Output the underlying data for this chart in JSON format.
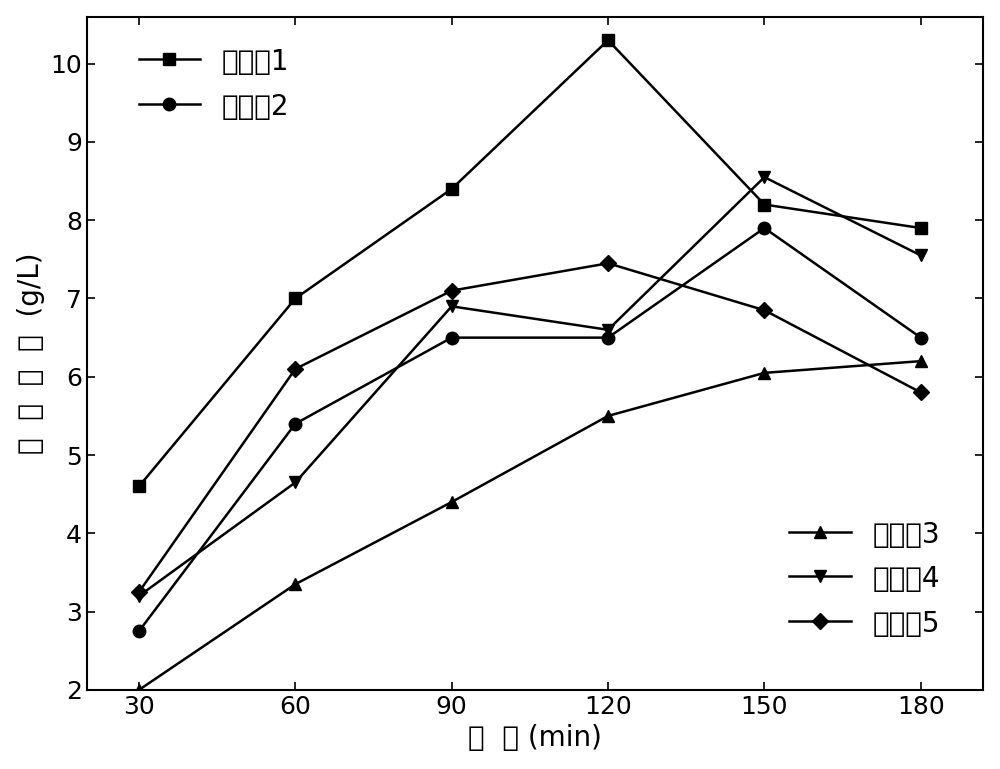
{
  "x": [
    30,
    60,
    90,
    120,
    150,
    180
  ],
  "series": [
    {
      "label": "实施例1",
      "y": [
        4.6,
        7.0,
        8.4,
        10.3,
        8.2,
        7.9
      ],
      "marker": "s",
      "markersize": 9
    },
    {
      "label": "实施例2",
      "y": [
        2.75,
        5.4,
        6.5,
        6.5,
        7.9,
        6.5
      ],
      "marker": "o",
      "markersize": 9
    },
    {
      "label": "实施例3",
      "y": [
        2.0,
        3.35,
        4.4,
        5.5,
        6.05,
        6.2
      ],
      "marker": "^",
      "markersize": 9
    },
    {
      "label": "实施例4",
      "y": [
        3.2,
        4.65,
        6.9,
        6.6,
        8.55,
        7.55
      ],
      "marker": "v",
      "markersize": 9
    },
    {
      "label": "实施例5",
      "y": [
        3.25,
        6.1,
        7.1,
        7.45,
        6.85,
        5.8
      ],
      "marker": "D",
      "markersize": 8
    }
  ],
  "xlabel": "时  间 (min)",
  "ylabel": "氯  化  效  率  (g/L)",
  "xlim": [
    20,
    192
  ],
  "ylim": [
    2,
    10.6
  ],
  "xticks": [
    30,
    60,
    90,
    120,
    150,
    180
  ],
  "yticks": [
    2,
    3,
    4,
    5,
    6,
    7,
    8,
    9,
    10
  ],
  "label_fontsize": 20,
  "tick_fontsize": 18,
  "legend_fontsize": 20,
  "background_color": "#ffffff",
  "linewidth": 1.8,
  "color": "#000000",
  "legend1_entries": [
    0,
    1
  ],
  "legend2_entries": [
    2,
    3,
    4
  ]
}
